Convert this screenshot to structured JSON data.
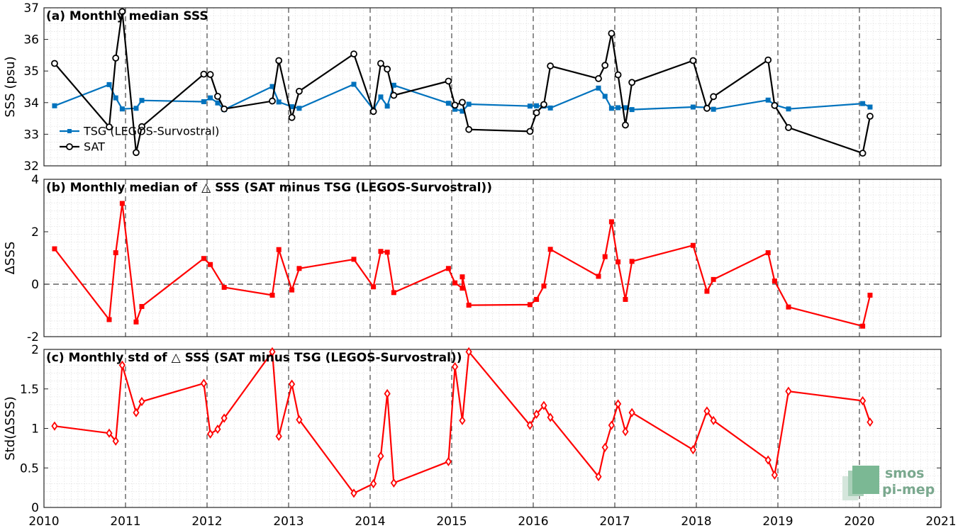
{
  "chart_data": [
    {
      "type": "line",
      "title": "(a) Monthly median SSS",
      "ylabel": "SSS (psu)",
      "xlim": [
        2010,
        2021
      ],
      "ylim": [
        32,
        37
      ],
      "yticks": [
        32,
        33,
        34,
        35,
        36,
        37
      ],
      "grid": true,
      "legend": "left",
      "series": [
        {
          "name": "TSG (LEGOS-Survostral)",
          "color": "#0072BD",
          "marker": "square",
          "x": [
            2010.13,
            2010.8,
            2010.88,
            2010.96,
            2011.13,
            2011.2,
            2011.96,
            2012.04,
            2012.13,
            2012.21,
            2012.8,
            2012.88,
            2013.04,
            2013.13,
            2013.8,
            2014.04,
            2014.13,
            2014.21,
            2014.29,
            2014.96,
            2015.04,
            2015.13,
            2015.21,
            2015.96,
            2016.04,
            2016.13,
            2016.21,
            2016.8,
            2016.88,
            2016.96,
            2017.04,
            2017.13,
            2017.21,
            2017.96,
            2018.13,
            2018.21,
            2018.88,
            2018.96,
            2019.13,
            2020.04,
            2020.13
          ],
          "y": [
            33.9,
            34.57,
            34.15,
            33.8,
            33.82,
            34.07,
            34.03,
            34.15,
            33.99,
            33.78,
            34.51,
            34.02,
            33.87,
            33.82,
            34.58,
            33.78,
            34.18,
            33.89,
            34.55,
            33.98,
            33.79,
            33.73,
            33.95,
            33.89,
            33.9,
            33.89,
            33.83,
            34.46,
            34.2,
            33.82,
            33.84,
            33.84,
            33.78,
            33.86,
            33.85,
            33.79,
            34.08,
            33.93,
            33.8,
            33.97,
            33.86
          ]
        },
        {
          "name": "SAT",
          "color": "#000000",
          "marker": "circle",
          "x": [
            2010.13,
            2010.8,
            2010.88,
            2010.96,
            2011.13,
            2011.2,
            2011.96,
            2012.04,
            2012.13,
            2012.21,
            2012.8,
            2012.88,
            2013.04,
            2013.13,
            2013.8,
            2014.04,
            2014.13,
            2014.21,
            2014.29,
            2014.96,
            2015.04,
            2015.13,
            2015.21,
            2015.96,
            2016.04,
            2016.13,
            2016.21,
            2016.8,
            2016.88,
            2016.96,
            2017.04,
            2017.13,
            2017.21,
            2017.96,
            2018.13,
            2018.21,
            2018.88,
            2018.96,
            2019.13,
            2020.04,
            2020.13
          ],
          "y": [
            35.24,
            33.23,
            35.41,
            36.88,
            32.42,
            33.24,
            34.9,
            34.89,
            34.2,
            33.8,
            34.05,
            35.33,
            33.53,
            34.36,
            35.54,
            33.72,
            35.24,
            35.06,
            34.23,
            34.68,
            33.92,
            34.01,
            33.15,
            33.09,
            33.68,
            33.94,
            35.16,
            34.76,
            35.18,
            36.19,
            34.88,
            33.29,
            34.64,
            35.33,
            33.82,
            34.19,
            35.35,
            33.91,
            33.21,
            32.4,
            33.57
          ]
        }
      ]
    },
    {
      "type": "line",
      "title": "(b) Monthly median of △ SSS (SAT minus TSG (LEGOS-Survostral))",
      "ylabel": "ΔSSS",
      "xlim": [
        2010,
        2021
      ],
      "ylim": [
        -2,
        4
      ],
      "yticks": [
        -2,
        0,
        2,
        4
      ],
      "zero_line": true,
      "grid": true,
      "series": [
        {
          "name": "",
          "color": "#FF0000",
          "marker": "square",
          "x": [
            2010.13,
            2010.8,
            2010.88,
            2010.96,
            2011.13,
            2011.2,
            2011.96,
            2012.04,
            2012.21,
            2012.8,
            2012.88,
            2013.04,
            2013.13,
            2013.8,
            2014.04,
            2014.13,
            2014.21,
            2014.29,
            2014.96,
            2015.04,
            2015.13,
            2015.13,
            2015.21,
            2015.96,
            2016.04,
            2016.13,
            2016.21,
            2016.8,
            2016.88,
            2016.96,
            2017.04,
            2017.13,
            2017.21,
            2017.96,
            2018.13,
            2018.21,
            2018.88,
            2018.96,
            2019.13,
            2020.04,
            2020.13
          ],
          "y": [
            1.35,
            -1.35,
            1.2,
            3.08,
            -1.44,
            -0.85,
            0.98,
            0.75,
            -0.12,
            -0.42,
            1.32,
            -0.22,
            0.6,
            0.95,
            -0.1,
            1.25,
            1.22,
            -0.32,
            0.6,
            0.05,
            -0.15,
            0.28,
            -0.8,
            -0.78,
            -0.58,
            -0.07,
            1.33,
            0.3,
            1.05,
            2.38,
            0.85,
            -0.58,
            0.87,
            1.48,
            -0.27,
            0.18,
            1.2,
            0.12,
            -0.87,
            -1.6,
            -0.42
          ]
        }
      ]
    },
    {
      "type": "line",
      "title": "(c) Monthly std of △ SSS (SAT minus TSG (LEGOS-Survostral))",
      "ylabel": "Std(ΔSSS)",
      "xlim": [
        2010,
        2021
      ],
      "ylim": [
        0,
        2
      ],
      "yticks": [
        0,
        0.5,
        1,
        1.5,
        2
      ],
      "xticks": [
        2010,
        2011,
        2012,
        2013,
        2014,
        2015,
        2016,
        2017,
        2018,
        2019,
        2020,
        2021
      ],
      "grid": true,
      "series": [
        {
          "name": "",
          "color": "#FF0000",
          "marker": "diamond",
          "x": [
            2010.13,
            2010.8,
            2010.88,
            2010.96,
            2011.13,
            2011.2,
            2011.96,
            2012.04,
            2012.13,
            2012.21,
            2012.8,
            2012.88,
            2013.04,
            2013.13,
            2013.8,
            2014.04,
            2014.13,
            2014.21,
            2014.29,
            2014.96,
            2015.04,
            2015.13,
            2015.21,
            2015.96,
            2016.04,
            2016.13,
            2016.21,
            2016.8,
            2016.88,
            2016.96,
            2017.04,
            2017.13,
            2017.21,
            2017.96,
            2018.13,
            2018.21,
            2018.88,
            2018.96,
            2019.13,
            2020.04,
            2020.13
          ],
          "y": [
            1.03,
            0.94,
            0.84,
            1.8,
            1.2,
            1.34,
            1.57,
            0.93,
            0.99,
            1.13,
            1.97,
            0.9,
            1.56,
            1.11,
            0.18,
            0.3,
            0.65,
            1.44,
            0.31,
            0.58,
            1.78,
            1.1,
            1.97,
            1.04,
            1.18,
            1.29,
            1.14,
            0.39,
            0.76,
            1.04,
            1.31,
            0.96,
            1.2,
            0.73,
            1.22,
            1.1,
            0.6,
            0.41,
            1.47,
            1.35,
            1.08
          ]
        }
      ]
    }
  ],
  "logo": {
    "line1": "smos",
    "line2": "pi-mep"
  }
}
